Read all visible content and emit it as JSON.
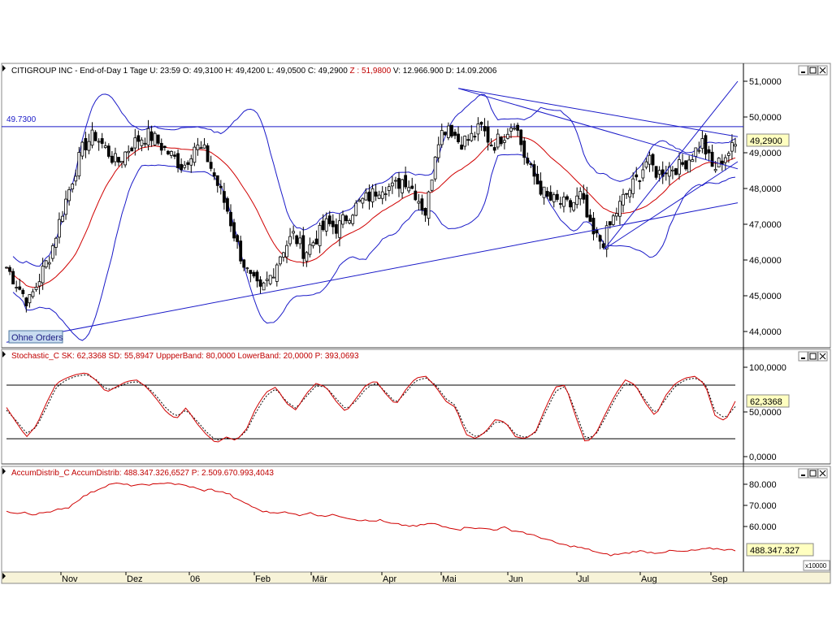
{
  "colors": {
    "price": "#000000",
    "band": "#1a1ac8",
    "ma": "#d00000",
    "trend": "#1a1ac8",
    "stoch_k": "#d00000",
    "stoch_d": "#000000",
    "accum": "#d00000",
    "last_value_bg": "#ffffc0"
  },
  "panels": {
    "price": {
      "title_black": "CITIGROUP INC - End-of-Day 1 Tage  U: 23:59  O: 49,3100  H: 49,4200  L: 49,0500  C: 49,2900",
      "title_red": "Z : 51,9800",
      "title_black2": "V: 12.966.900  D: 14.09.2006",
      "hline_label": "49.7300",
      "last_value": "49,2900",
      "orders_button": "Ohne Orders",
      "y_ticks": [
        "51,0000",
        "50,0000",
        "49,0000",
        "48,0000",
        "47,0000",
        "46,0000",
        "45,0000",
        "44,0000"
      ]
    },
    "stochastic": {
      "title": "Stochastic_C  SK: 62,3368   SD: 55,8947   UppperBand: 80,0000   LowerBand: 20,0000",
      "title_red": "P: 393,0693",
      "last_value": "62,3368",
      "y_ticks": [
        "100,0000",
        "50,0000",
        "0,0000"
      ]
    },
    "accum": {
      "title": "AccumDistrib_C  AccumDistrib: 488.347.326,6527",
      "title_red": "P: 2.509.670.993,4043",
      "last_value": "488.347.327",
      "multiplier": "x10000",
      "y_ticks": [
        "80.000",
        "70.000",
        "60.000"
      ]
    }
  },
  "x_axis": {
    "months": [
      "Nov",
      "Dez",
      "06",
      "Feb",
      "Mär",
      "Apr",
      "Mai",
      "Jun",
      "Jul",
      "Aug",
      "Sep"
    ]
  },
  "chart_data": [
    {
      "type": "candlestick",
      "title": "CITIGROUP INC - End-of-Day 1 Tage",
      "ylim": [
        43.5,
        51.2
      ],
      "x_range": [
        "Okt 2005",
        "14.09.2006"
      ],
      "horizontal_line": 49.73,
      "last_close": 49.29,
      "close_path": [
        45.8,
        45.3,
        44.8,
        45.5,
        46.2,
        47.3,
        48.3,
        49.2,
        49.5,
        49.1,
        48.7,
        49.1,
        49.4,
        49.5,
        49.2,
        48.9,
        48.6,
        49.2,
        49.0,
        48.2,
        47.4,
        46.3,
        45.5,
        45.1,
        45.6,
        46.3,
        46.7,
        46.2,
        46.6,
        47.0,
        46.9,
        47.3,
        47.6,
        47.8,
        48.1,
        48.0,
        48.3,
        47.9,
        47.3,
        49.4,
        49.8,
        49.3,
        49.4,
        49.7,
        49.2,
        49.5,
        49.9,
        48.8,
        48.2,
        47.7,
        47.6,
        47.5,
        47.8,
        46.7,
        46.5,
        47.2,
        47.8,
        48.2,
        48.8,
        48.4,
        48.6,
        48.6,
        48.9,
        49.3,
        48.5,
        48.9,
        49.2
      ],
      "overlays": [
        "Bollinger Bands (upper/lower)",
        "Moving Average",
        "Trend lines"
      ]
    },
    {
      "type": "line",
      "title": "Stochastic_C",
      "ylim": [
        -10,
        105
      ],
      "bands": [
        80,
        20
      ],
      "series": [
        {
          "name": "SK",
          "last": 62.3368,
          "values": [
            55,
            38,
            22,
            35,
            60,
            82,
            88,
            92,
            94,
            85,
            72,
            78,
            84,
            86,
            78,
            65,
            50,
            42,
            55,
            38,
            25,
            15,
            22,
            18,
            30,
            55,
            72,
            78,
            60,
            52,
            70,
            82,
            78,
            62,
            50,
            65,
            80,
            85,
            70,
            58,
            75,
            88,
            90,
            78,
            62,
            55,
            25,
            20,
            28,
            42,
            38,
            22,
            20,
            28,
            55,
            78,
            80,
            45,
            15,
            25,
            48,
            70,
            86,
            80,
            60,
            45,
            68,
            82,
            88,
            90,
            80,
            45,
            40,
            62
          ]
        },
        {
          "name": "SD",
          "last": 55.8947,
          "values": [
            52,
            40,
            26,
            33,
            55,
            78,
            86,
            90,
            92,
            86,
            75,
            77,
            82,
            84,
            79,
            68,
            54,
            45,
            52,
            41,
            28,
            18,
            21,
            19,
            28,
            50,
            68,
            76,
            62,
            54,
            67,
            79,
            78,
            65,
            53,
            62,
            76,
            83,
            72,
            60,
            72,
            85,
            88,
            80,
            65,
            57,
            30,
            22,
            27,
            39,
            38,
            25,
            21,
            27,
            50,
            73,
            79,
            50,
            20,
            24,
            44,
            66,
            82,
            80,
            63,
            48,
            64,
            79,
            86,
            88,
            82,
            50,
            43,
            56
          ]
        }
      ]
    },
    {
      "type": "line",
      "title": "AccumDistrib_C",
      "multiplier": "x10000",
      "ylim": [
        45000,
        83000
      ],
      "series": [
        {
          "name": "AccumDistrib",
          "last": 48834.7327,
          "values": [
            67500,
            66000,
            66500,
            65500,
            67000,
            66500,
            68500,
            69000,
            72500,
            75000,
            77000,
            79000,
            80500,
            80000,
            79500,
            79500,
            80000,
            79800,
            81000,
            80000,
            79500,
            78500,
            77000,
            77500,
            76500,
            75500,
            72500,
            71000,
            68500,
            67000,
            66500,
            67000,
            66000,
            65500,
            66500,
            65500,
            65000,
            65500,
            64500,
            63500,
            63000,
            62500,
            63000,
            61500,
            61000,
            60500,
            60000,
            61000,
            61500,
            60000,
            59500,
            58500,
            60000,
            59000,
            59000,
            58500,
            59500,
            58000,
            57500,
            56000,
            55000,
            53500,
            52000,
            51000,
            50500,
            49500,
            48500,
            47000,
            46500,
            47000,
            47500,
            48500,
            48000,
            47500,
            48000,
            48500,
            48000,
            48500,
            49000,
            49500,
            49500,
            49000,
            48800
          ]
        }
      ]
    }
  ]
}
